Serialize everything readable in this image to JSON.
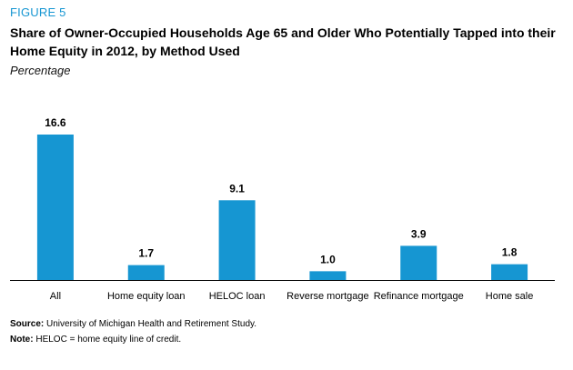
{
  "figure_label": "FIGURE 5",
  "colors": {
    "accent": "#1696d2",
    "bar": "#1696d2",
    "axis": "#000000"
  },
  "chart_data": {
    "type": "bar",
    "title": "Share of Owner-Occupied Households Age 65 and Older Who Potentially Tapped into their Home Equity in 2012, by Method Used",
    "subtitle": "Percentage",
    "categories": [
      "All",
      "Home equity loan",
      "HELOC loan",
      "Reverse mortgage",
      "Refinance mortgage",
      "Home sale"
    ],
    "values": [
      16.6,
      1.7,
      9.1,
      1.0,
      3.9,
      1.8
    ],
    "data_labels": [
      "16.6",
      "1.7",
      "9.1",
      "1.0",
      "3.9",
      "1.8"
    ],
    "xlabel": "",
    "ylabel": "",
    "ylim": [
      0,
      16.6
    ],
    "grid": false,
    "legend": "none"
  },
  "footnotes": {
    "source_label": "Source:",
    "source_text": " University of Michigan Health and Retirement Study.",
    "note_label": "Note:",
    "note_text": " HELOC = home equity line of credit."
  }
}
